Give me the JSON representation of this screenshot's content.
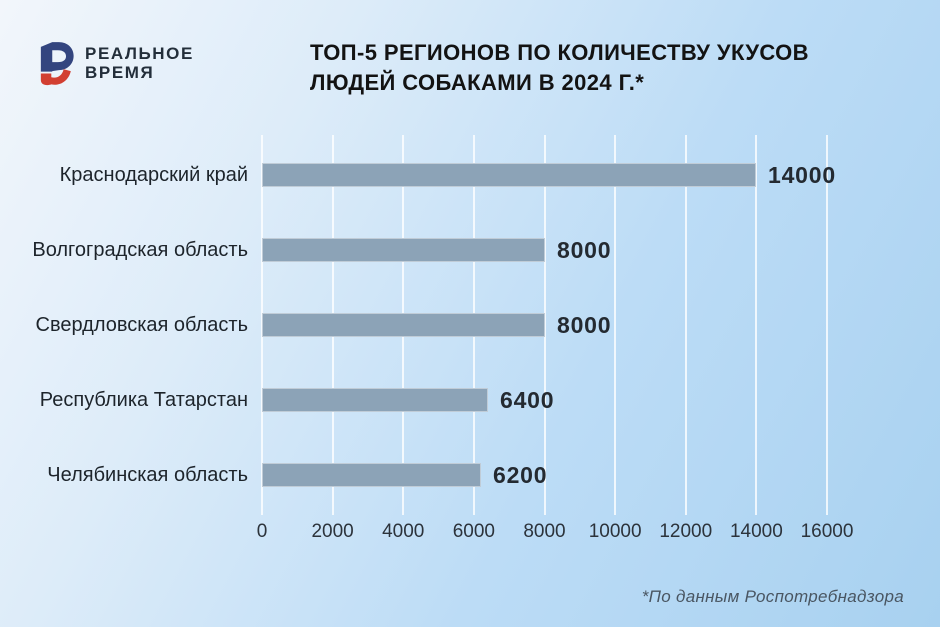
{
  "logo": {
    "line1": "РЕАЛЬНОЕ",
    "line2": "ВРЕМЯ",
    "mark_blue": "#33457f",
    "mark_red": "#d23f31"
  },
  "title_lines": [
    "ТОП-5 РЕГИОНОВ ПО КОЛИЧЕСТВУ УКУСОВ",
    "ЛЮДЕЙ СОБАКАМИ В 2024 Г.*"
  ],
  "footnote": "*По данным Роспотребнадзора",
  "chart_data": {
    "type": "bar",
    "orientation": "horizontal",
    "title": "ТОП-5 РЕГИОНОВ ПО КОЛИЧЕСТВУ УКУСОВ ЛЮДЕЙ СОБАКАМИ В 2024 Г.*",
    "categories": [
      "Краснодарский край",
      "Волгоградская область",
      "Свердловская область",
      "Республика Татарстан",
      "Челябинская область"
    ],
    "values": [
      14000,
      8000,
      8000,
      6400,
      6200
    ],
    "value_labels": [
      "14000",
      "8000",
      "8000",
      "6400",
      "6200"
    ],
    "xlim": [
      0,
      16000
    ],
    "x_ticks": [
      "0",
      "2000",
      "4000",
      "6000",
      "8000",
      "10000",
      "12000",
      "14000",
      "16000"
    ],
    "grid": true,
    "legend": "none",
    "bar_color": "#8ca3b7",
    "gridline_color": "rgba(255,255,255,0.78)",
    "background": "light-blue gradient",
    "source_note": "*По данным Роспотребнадзора"
  }
}
